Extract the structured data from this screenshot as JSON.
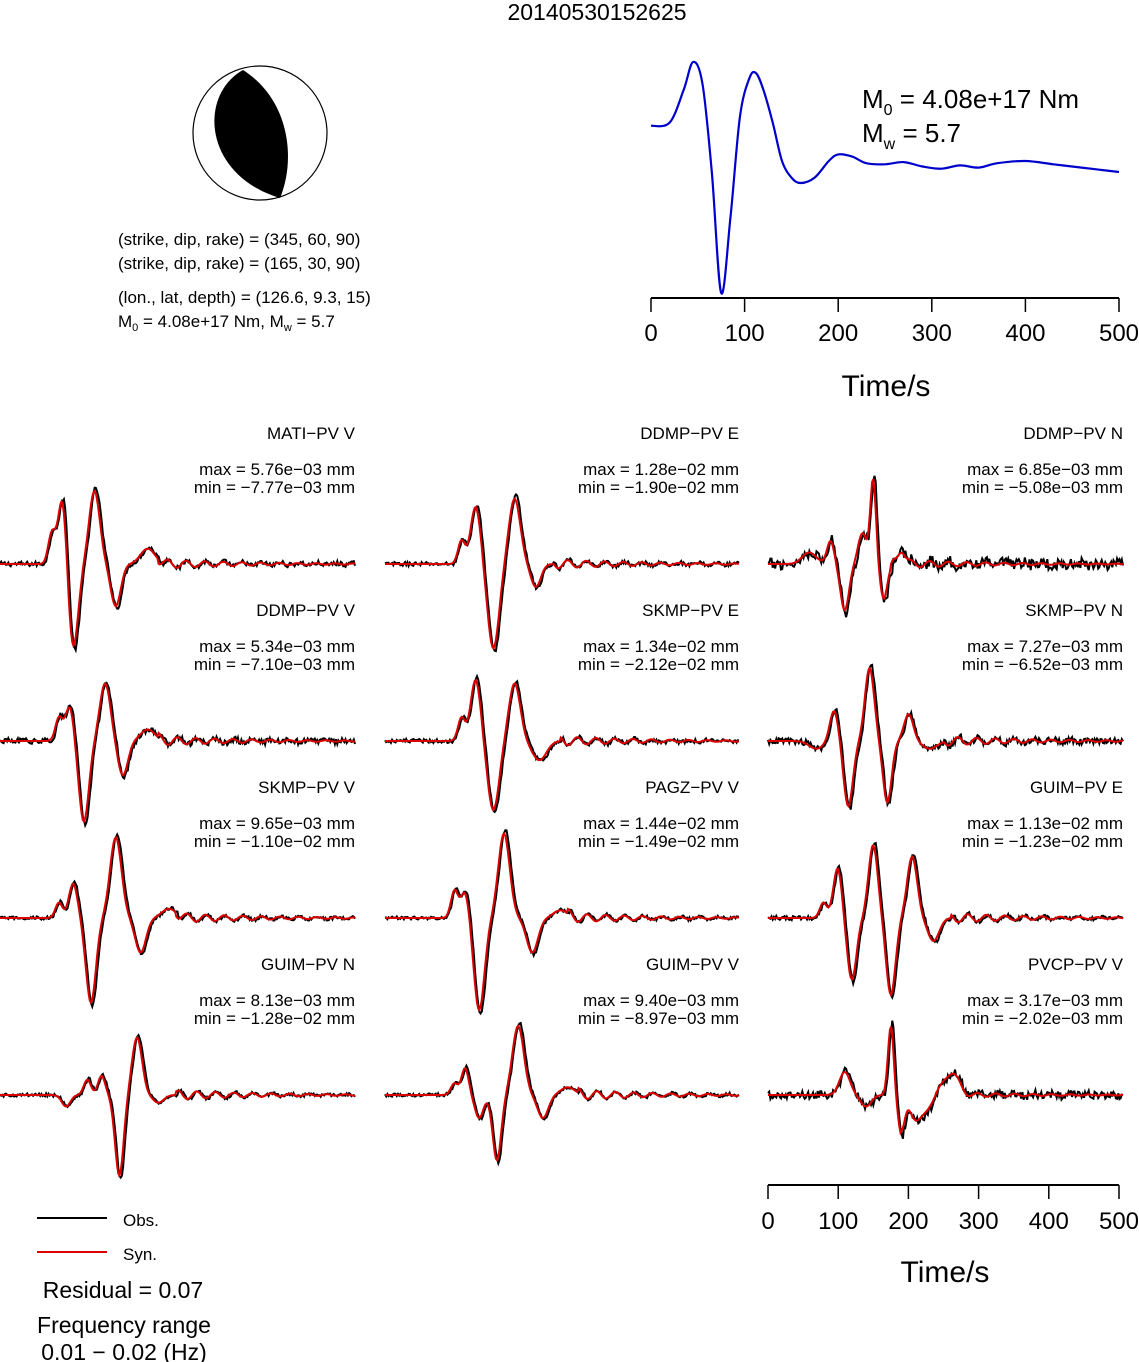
{
  "title": "20140530152625",
  "mechanism": {
    "plane1": "(strike, dip, rake) = (345, 60, 90)",
    "plane2": "(strike, dip, rake) = (165, 30, 90)",
    "location": "(lon., lat, depth) = (126.6, 9.3, 15)",
    "moment_prefix": "M",
    "moment_sub": "0",
    "moment_mid": " = 4.08e+17 Nm, M",
    "mw_sub": "w",
    "mw_suffix": " = 5.7"
  },
  "stf": {
    "m0_symbol": "M",
    "m0_sub": "0",
    "m0_value": " = 4.08e+17 Nm",
    "mw_symbol": "M",
    "mw_sub": "w",
    "mw_value": " = 5.7",
    "xlabel": "Time/s",
    "ticks": [
      "0",
      "100",
      "200",
      "300",
      "400",
      "500"
    ]
  },
  "legend": {
    "obs": "Obs.",
    "syn": "Syn."
  },
  "residual": "Residual = 0.07",
  "freq_label": "Frequency range",
  "freq_value": "0.01 − 0.02 (Hz)",
  "time_axis": {
    "xlabel": "Time/s",
    "ticks": [
      "0",
      "100",
      "200",
      "300",
      "400",
      "500"
    ]
  },
  "colors": {
    "obs": "#000000",
    "syn": "#dd0000",
    "stf": "#0000cc"
  },
  "chart_data": [
    {
      "type": "line",
      "name": "source-time-function",
      "xlabel": "Time/s",
      "xlim": [
        0,
        500
      ],
      "x": [
        0,
        20,
        35,
        45,
        55,
        65,
        75,
        85,
        95,
        105,
        112,
        120,
        130,
        140,
        150,
        160,
        175,
        190,
        200,
        215,
        230,
        250,
        270,
        290,
        310,
        330,
        350,
        370,
        400,
        430,
        460,
        480,
        500
      ],
      "y": [
        0.42,
        0.45,
        0.75,
        1.0,
        0.8,
        0.0,
        -1.1,
        -0.4,
        0.5,
        0.85,
        0.9,
        0.75,
        0.45,
        0.1,
        -0.05,
        -0.1,
        -0.05,
        0.1,
        0.16,
        0.14,
        0.08,
        0.07,
        0.09,
        0.05,
        0.03,
        0.06,
        0.04,
        0.08,
        0.1,
        0.07,
        0.04,
        0.02,
        0.0
      ]
    },
    {
      "type": "line",
      "name": "waveforms",
      "xlabel": "Time/s",
      "xlim": [
        0,
        500
      ],
      "stations": [
        {
          "label": "MATI−PV V",
          "max": "max = 5.76e−03 mm",
          "min": "min = −7.77e−03 mm"
        },
        {
          "label": "DDMP−PV E",
          "max": "max = 1.28e−02 mm",
          "min": "min = −1.90e−02 mm"
        },
        {
          "label": "DDMP−PV N",
          "max": "max = 6.85e−03 mm",
          "min": "min = −5.08e−03 mm"
        },
        {
          "label": "DDMP−PV V",
          "max": "max = 5.34e−03 mm",
          "min": "min = −7.10e−03 mm"
        },
        {
          "label": "SKMP−PV E",
          "max": "max = 1.34e−02 mm",
          "min": "min = −2.12e−02 mm"
        },
        {
          "label": "SKMP−PV N",
          "max": "max = 7.27e−03 mm",
          "min": "min = −6.52e−03 mm"
        },
        {
          "label": "SKMP−PV V",
          "max": "max = 9.65e−03 mm",
          "min": "min = −1.10e−02 mm"
        },
        {
          "label": "PAGZ−PV V",
          "max": "max = 1.44e−02 mm",
          "min": "min = −1.49e−02 mm"
        },
        {
          "label": "GUIM−PV E",
          "max": "max = 1.13e−02 mm",
          "min": "min = −1.23e−02 mm"
        },
        {
          "label": "GUIM−PV N",
          "max": "max = 8.13e−03 mm",
          "min": "min = −1.28e−02 mm"
        },
        {
          "label": "GUIM−PV V",
          "max": "max = 9.40e−03 mm",
          "min": "min = −8.97e−03 mm"
        },
        {
          "label": "PVCP−PV V",
          "max": "max = 3.17e−03 mm",
          "min": "min = −2.02e−03 mm"
        }
      ]
    }
  ]
}
